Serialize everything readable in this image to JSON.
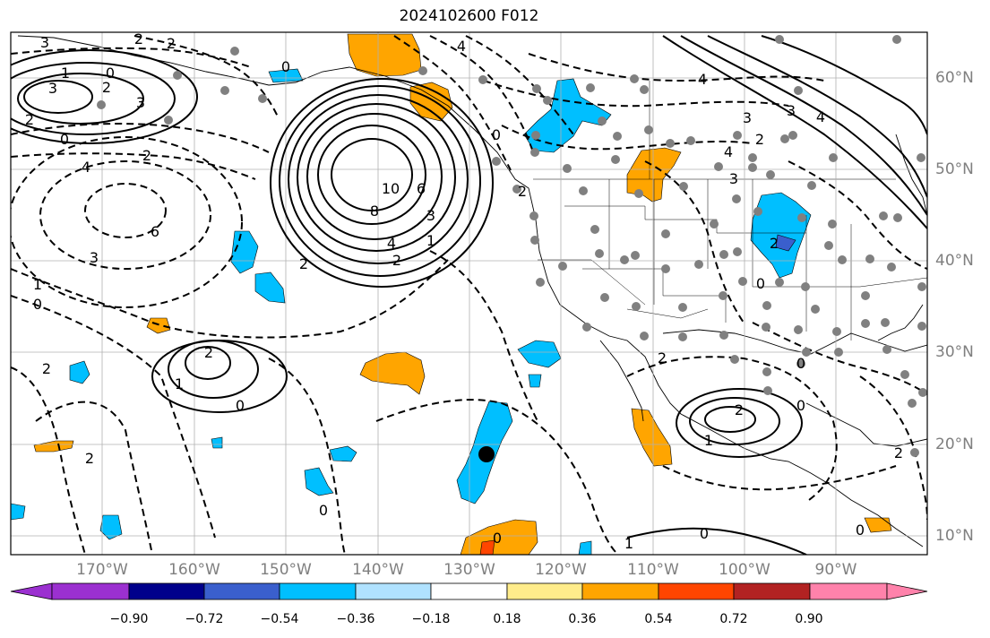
{
  "title": "2024102600 F012",
  "lon_labels": [
    "170°W",
    "160°W",
    "150°W",
    "140°W",
    "130°W",
    "120°W",
    "110°W",
    "100°W",
    "90°W"
  ],
  "lat_labels": [
    "60°N",
    "50°N",
    "40°N",
    "30°N",
    "20°N",
    "10°N"
  ],
  "colorbar": {
    "labels": [
      "−0.90",
      "−0.72",
      "−0.54",
      "−0.36",
      "−0.18",
      "0.18",
      "0.36",
      "0.54",
      "0.72",
      "0.90"
    ],
    "colors": [
      "#9b30d0",
      "#00008b",
      "#3a5fcd",
      "#00bfff",
      "#b0e2ff",
      "#ffffff",
      "#ffec8b",
      "#ffa500",
      "#ff4500",
      "#b22222",
      "#ff82ab"
    ]
  },
  "contour_labels": [
    {
      "text": "3"
    },
    {
      "text": "2"
    },
    {
      "text": "1"
    },
    {
      "text": "0"
    },
    {
      "text": "3"
    },
    {
      "text": "2"
    },
    {
      "text": "3"
    },
    {
      "text": "2"
    },
    {
      "text": "0"
    },
    {
      "text": "4"
    },
    {
      "text": "2"
    },
    {
      "text": "6"
    },
    {
      "text": "3"
    },
    {
      "text": "1"
    },
    {
      "text": "0"
    },
    {
      "text": "2"
    },
    {
      "text": "2"
    },
    {
      "text": "1"
    },
    {
      "text": "0"
    },
    {
      "text": "2"
    },
    {
      "text": "2"
    },
    {
      "text": "0"
    },
    {
      "text": "10"
    },
    {
      "text": "8"
    },
    {
      "text": "6"
    },
    {
      "text": "4"
    },
    {
      "text": "2"
    },
    {
      "text": "3"
    },
    {
      "text": "1"
    },
    {
      "text": "0"
    },
    {
      "text": "2"
    },
    {
      "text": "0"
    },
    {
      "text": "0"
    },
    {
      "text": "4"
    },
    {
      "text": "4"
    },
    {
      "text": "3"
    },
    {
      "text": "0"
    },
    {
      "text": "2"
    },
    {
      "text": "0"
    },
    {
      "text": "2"
    },
    {
      "text": "1"
    },
    {
      "text": "0"
    },
    {
      "text": "2"
    },
    {
      "text": "0"
    },
    {
      "text": "0"
    },
    {
      "text": "2"
    },
    {
      "text": "4"
    },
    {
      "text": "3"
    },
    {
      "text": "3"
    },
    {
      "text": "4"
    },
    {
      "text": "2"
    },
    {
      "text": "2"
    },
    {
      "text": "1"
    }
  ]
}
